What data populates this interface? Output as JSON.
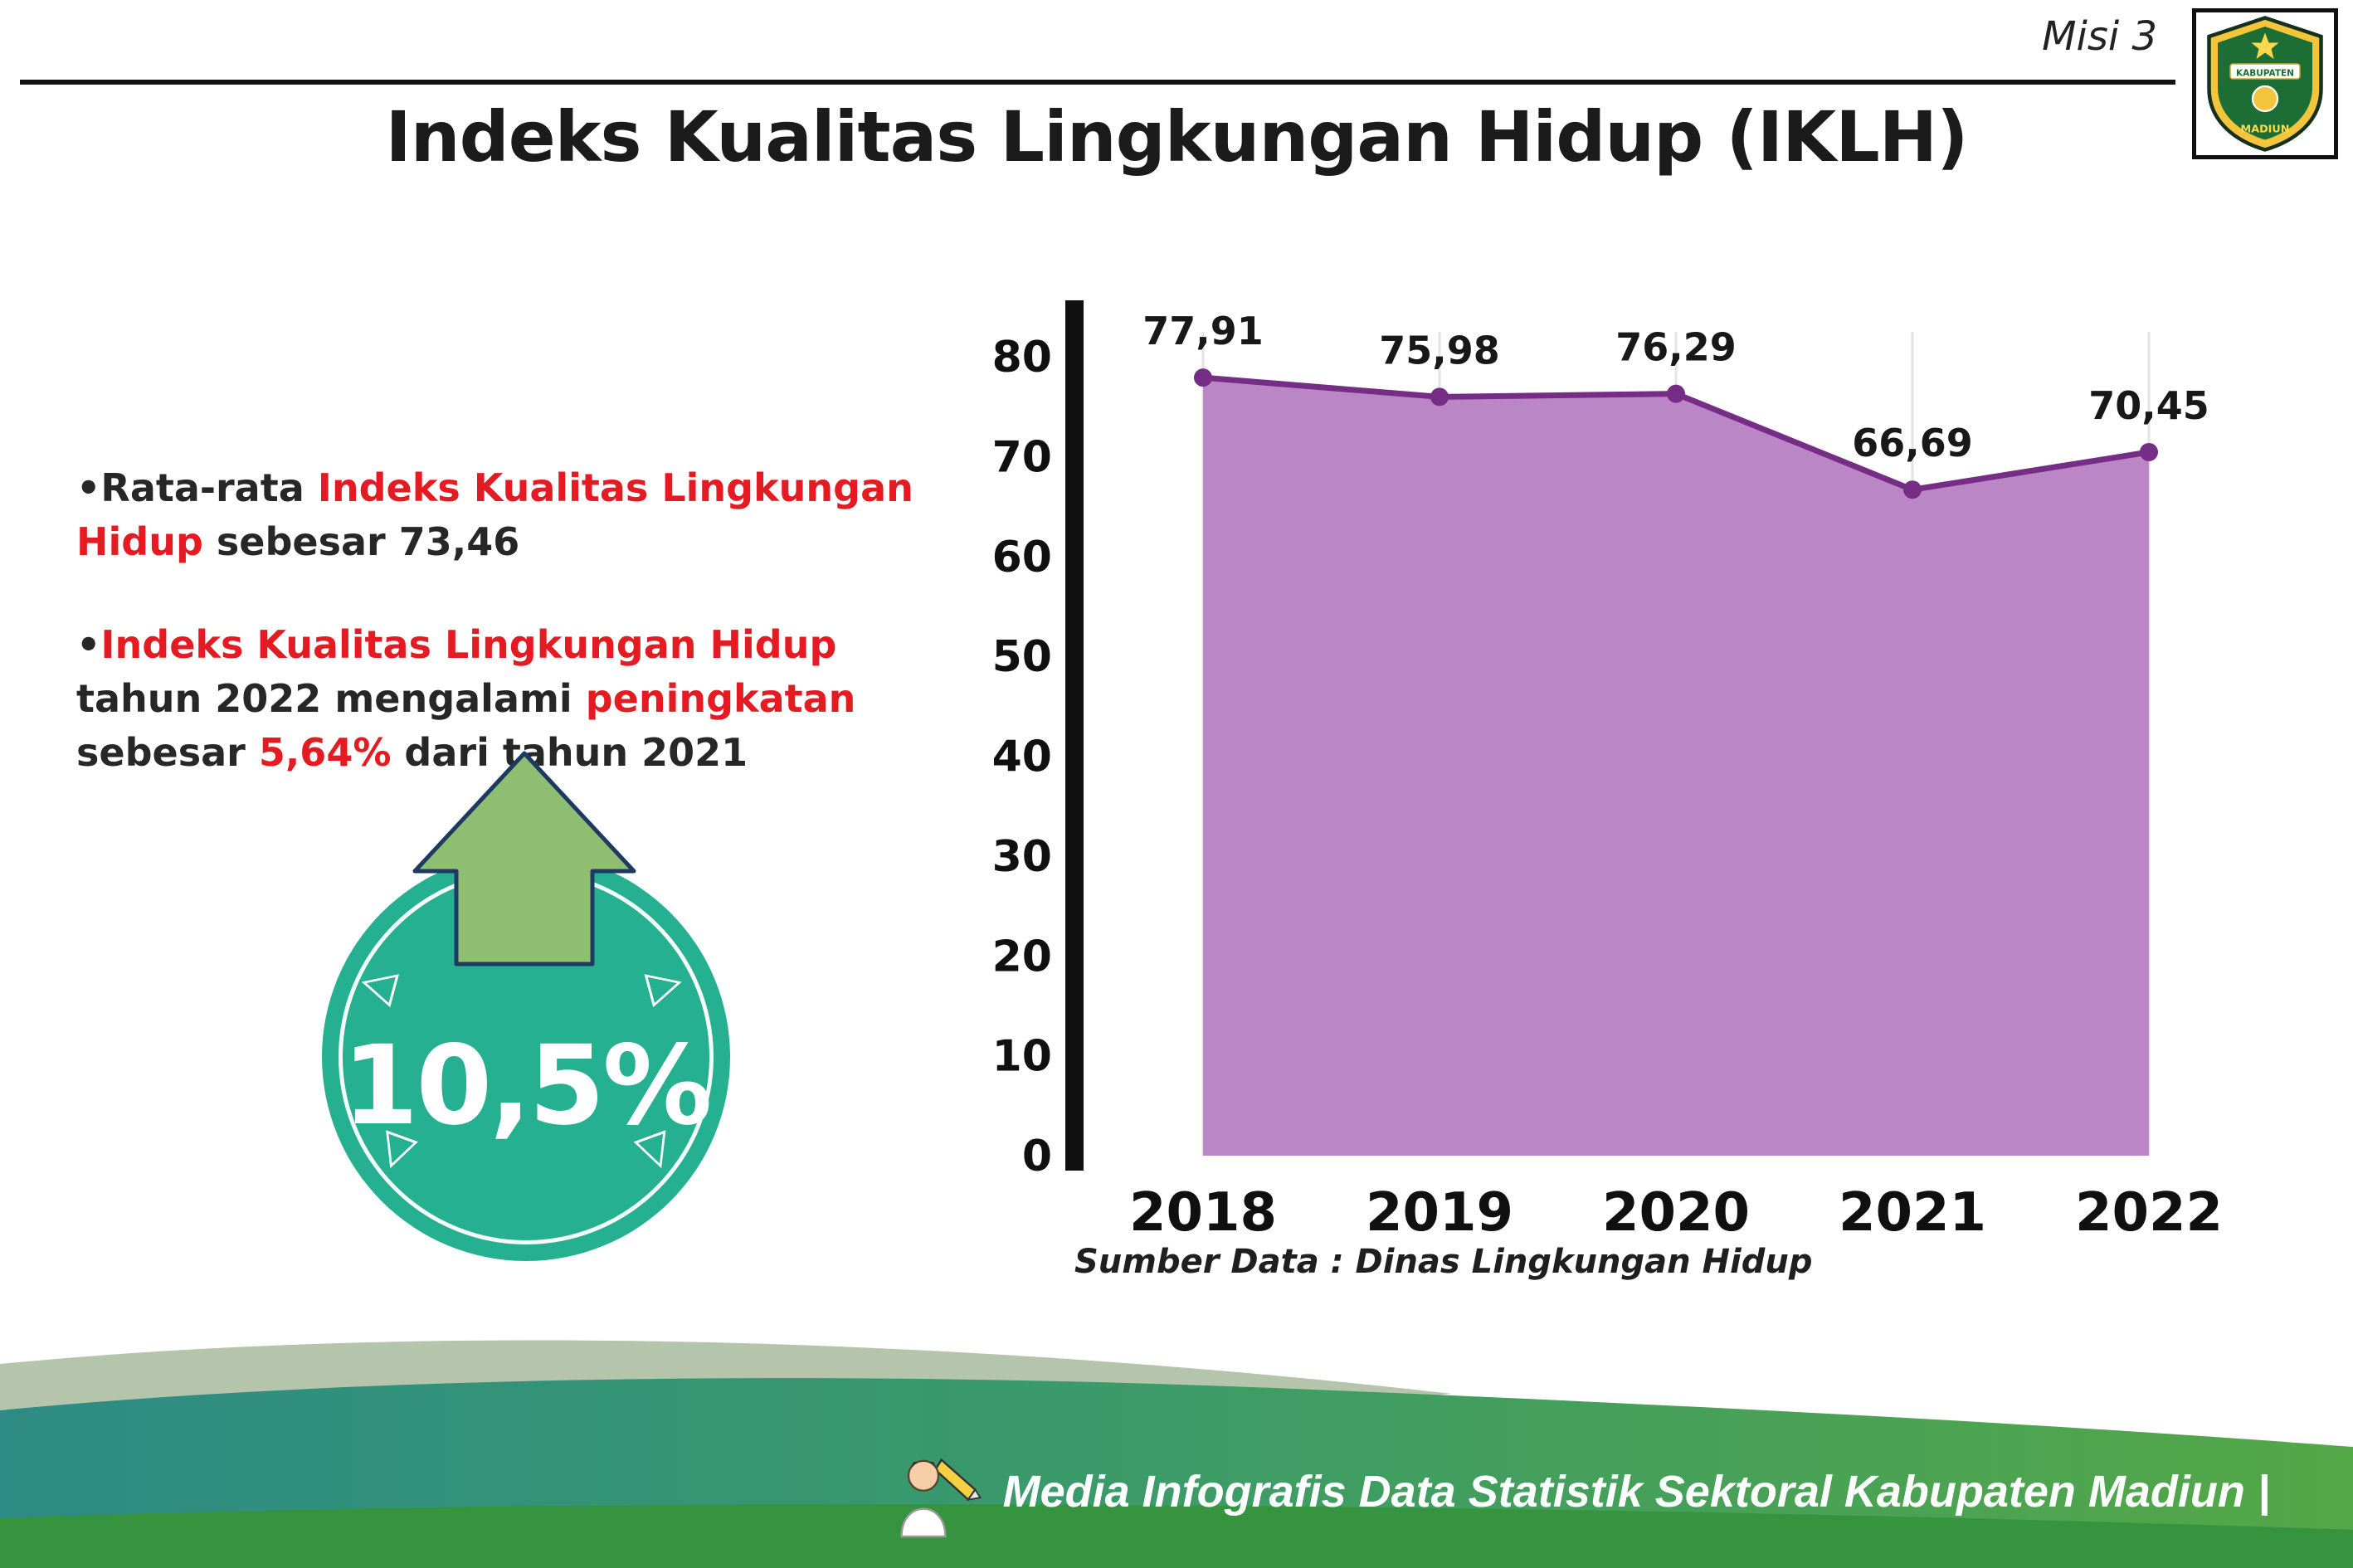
{
  "header": {
    "misi": "Misi 3",
    "title": "Indeks Kualitas Lingkungan Hidup (IKLH)",
    "logo": {
      "top_text": "KABUPATEN",
      "bottom_text": "MADIUN"
    }
  },
  "bullet_marker": "•",
  "bullets": [
    {
      "segments": [
        {
          "text": "Rata-rata "
        },
        {
          "text": "Indeks Kualitas Lingkungan Hidup"
        },
        {
          "text": " sebesar 73,46"
        }
      ]
    },
    {
      "segments": [
        {
          "text": "Indeks Kualitas Lingkungan Hidup"
        },
        {
          "text": " tahun 2022 mengalami "
        },
        {
          "text": "peningkatan"
        },
        {
          "text": " sebesar "
        },
        {
          "text": "5,64%"
        },
        {
          "text": " dari tahun 2021"
        }
      ]
    }
  ],
  "badge": {
    "value": "10,5%"
  },
  "chart_data": {
    "type": "area",
    "categories": [
      "2018",
      "2019",
      "2020",
      "2021",
      "2022"
    ],
    "values": [
      77.91,
      75.98,
      76.29,
      66.69,
      70.45
    ],
    "value_labels": [
      "77,91",
      "75,98",
      "76,29",
      "66,69",
      "70,45"
    ],
    "title": "",
    "xlabel": "",
    "ylabel": "",
    "ylim": [
      0,
      80
    ],
    "yticks": [
      0,
      10,
      20,
      30,
      40,
      50,
      60,
      70,
      80
    ],
    "grid": "vertical",
    "legend": "none",
    "source": "Sumber Data : Dinas Lingkungan Hidup",
    "colors": {
      "area": "#bb86c6",
      "line": "#762d86",
      "marker": "#762d86"
    }
  },
  "footer": {
    "text": "Media Infografis Data Statistik Sektoral Kabupaten Madiun |"
  },
  "colors": {
    "accent_red": "#e51b23",
    "badge_teal": "#25b191",
    "arrow_green": "#8fbe72"
  }
}
